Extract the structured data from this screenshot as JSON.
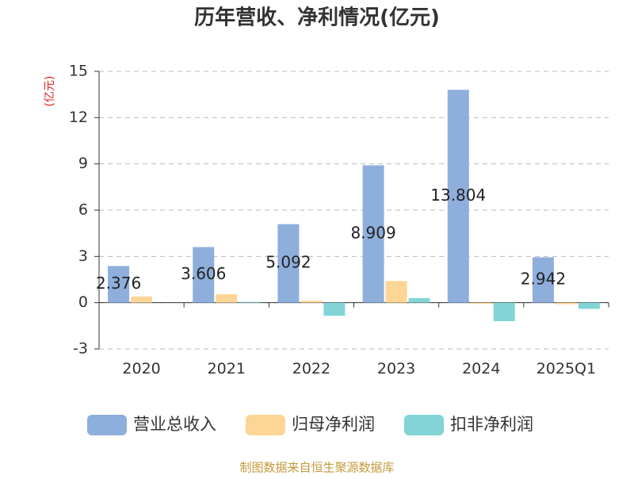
{
  "chart_data": {
    "type": "bar",
    "title": "历年营收、净利情况(亿元)",
    "y_label": "(亿元)",
    "source": "制图数据来自恒生聚源数据库",
    "categories": [
      "2020",
      "2021",
      "2022",
      "2023",
      "2024",
      "2025Q1"
    ],
    "series": [
      {
        "name": "营业总收入",
        "color": "#8eaedc",
        "values": [
          2.376,
          3.606,
          5.092,
          8.909,
          13.804,
          2.942
        ],
        "show_labels": true
      },
      {
        "name": "归母净利润",
        "color": "#fdd594",
        "values": [
          0.4,
          0.55,
          0.12,
          1.4,
          -0.08,
          -0.1
        ]
      },
      {
        "name": "扣非净利润",
        "color": "#82d4d6",
        "values": [
          0.0,
          0.05,
          -0.85,
          0.3,
          -1.2,
          -0.4
        ]
      }
    ],
    "ylim": [
      -3,
      15
    ],
    "yticks": [
      -3,
      0,
      3,
      6,
      9,
      12,
      15
    ],
    "grid": true
  }
}
